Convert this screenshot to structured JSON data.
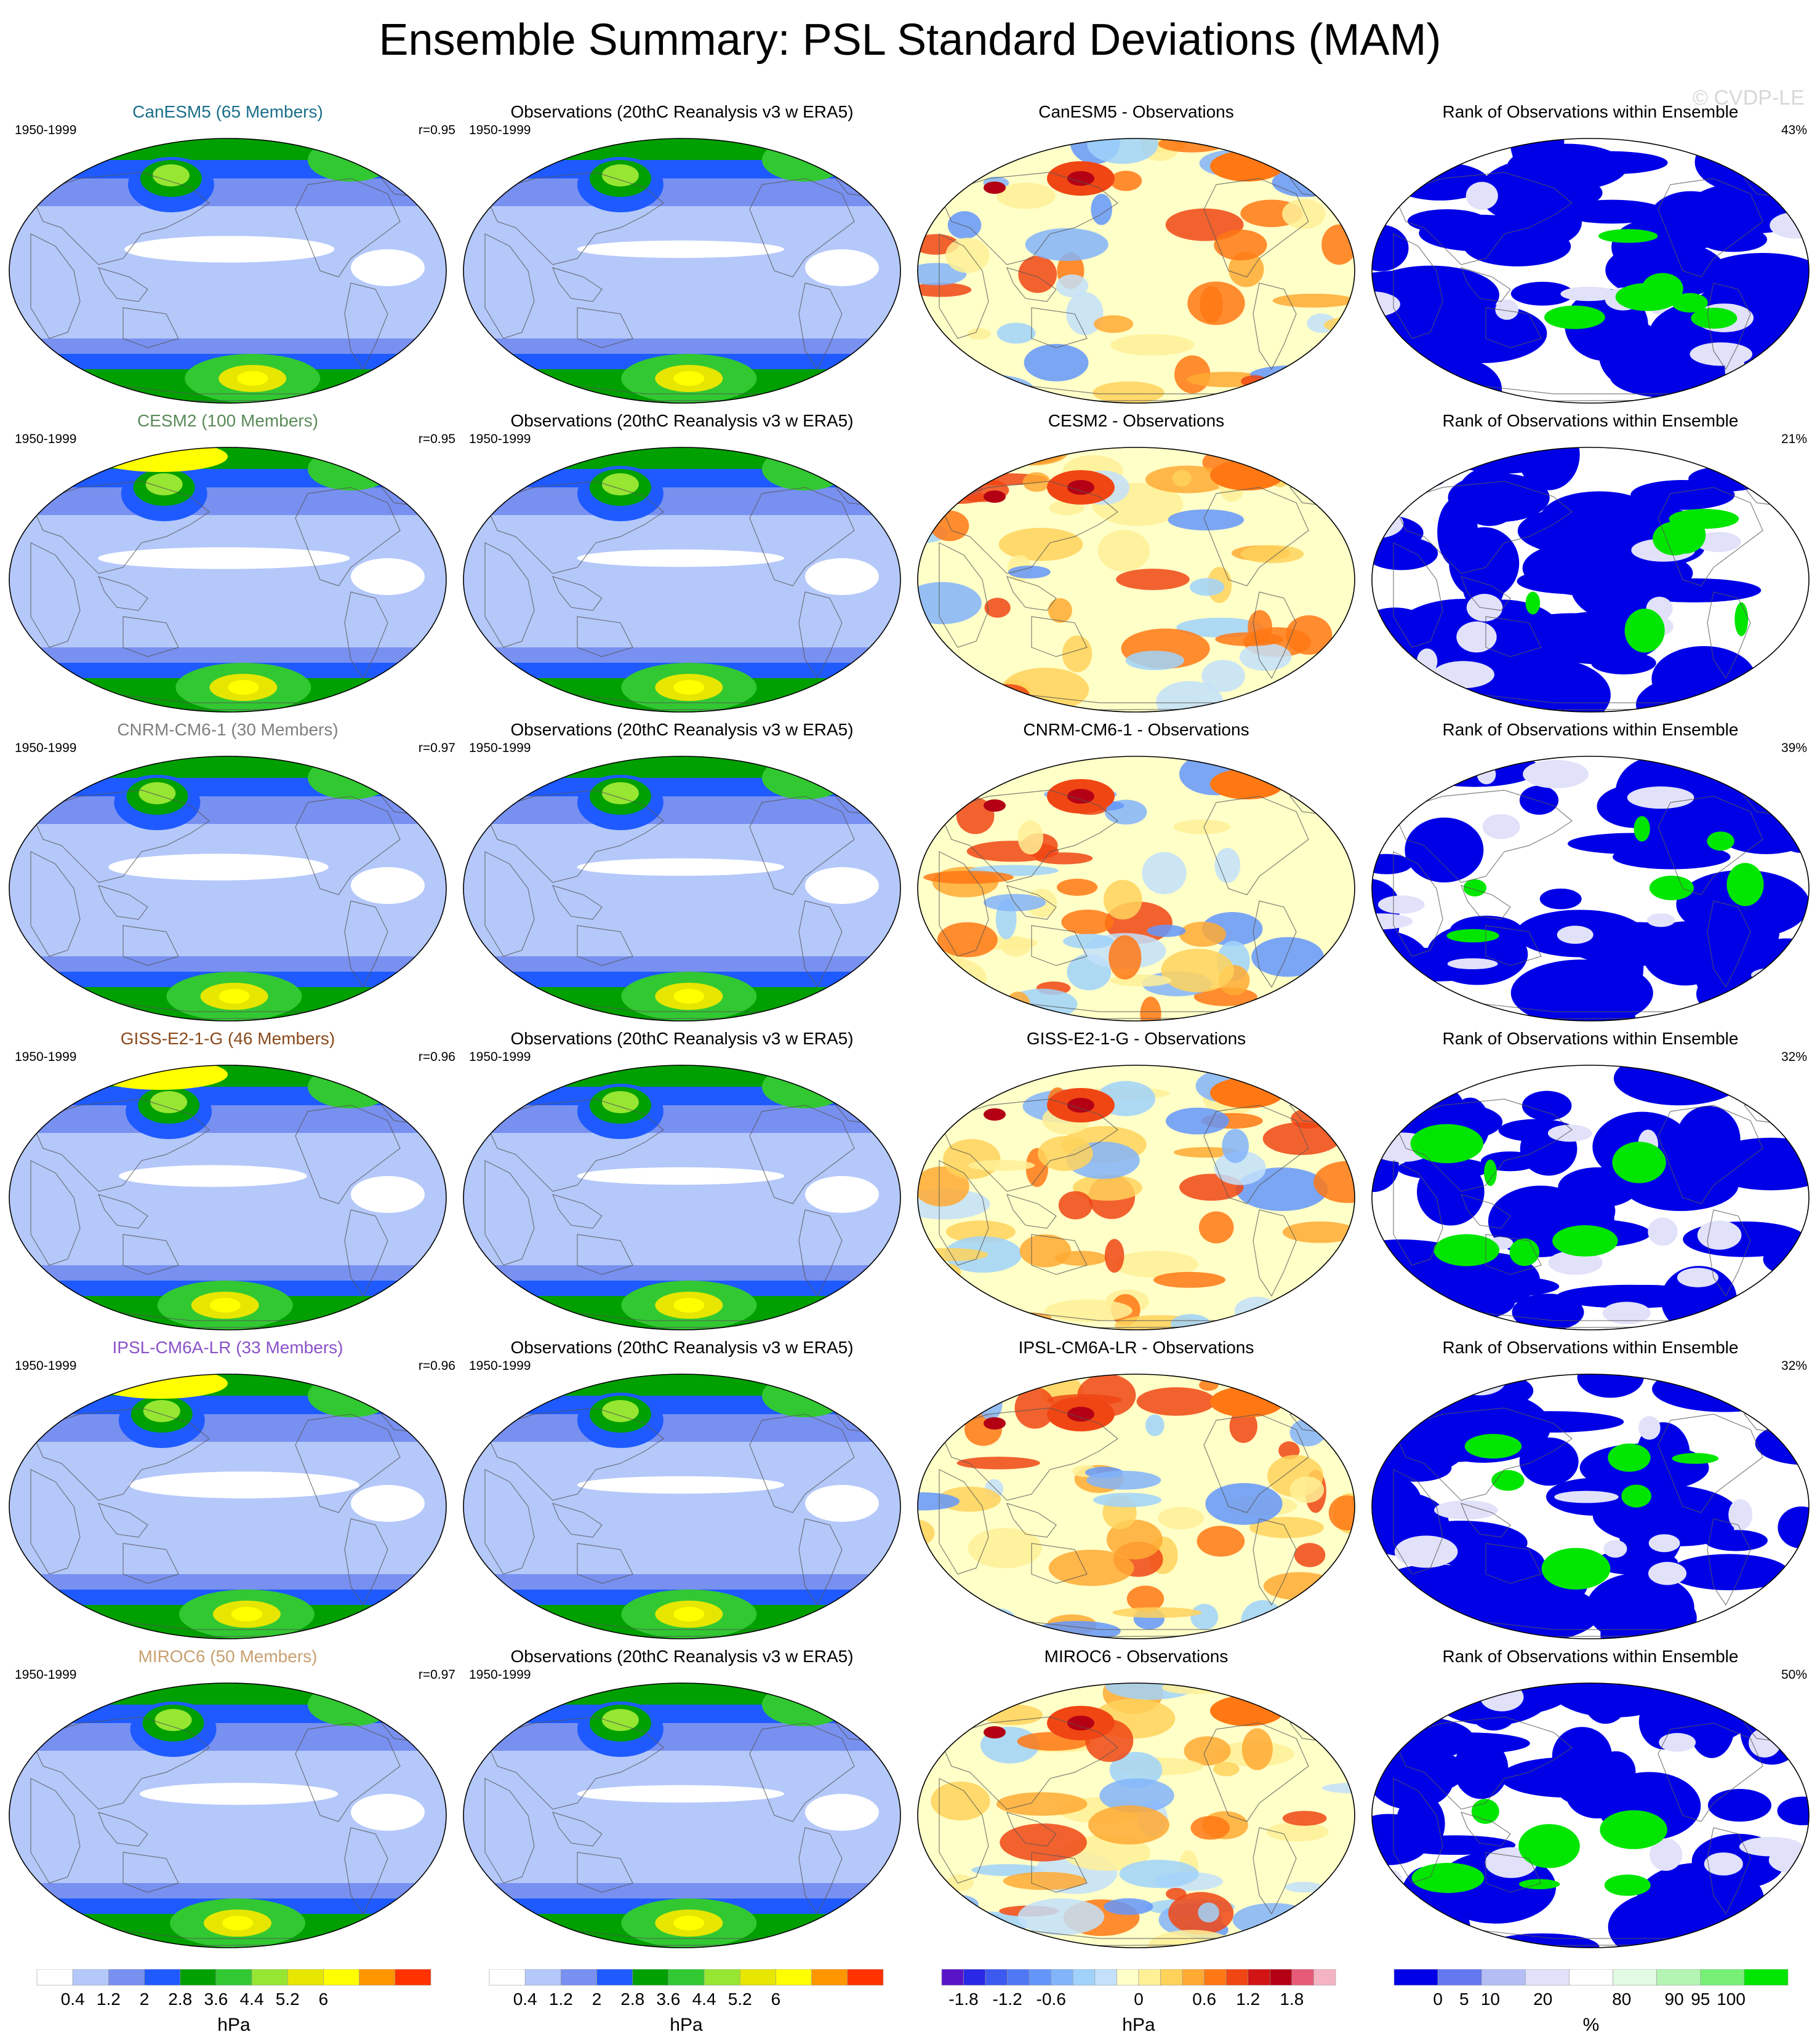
{
  "title": "Ensemble Summary: PSL Standard Deviations (MAM)",
  "watermark": "© CVDP-LE",
  "period": "1950-1999",
  "obs_title": "Observations (20thC Reanalysis v3 w ERA5)",
  "rank_title": "Rank of Observations within Ensemble",
  "rows": [
    {
      "model_title": "CanESM5 (65 Members)",
      "title_color": "#1b6f8a",
      "corr": "r=0.95",
      "diff_title": "CanESM5 - Observations",
      "rank_pct": "43%"
    },
    {
      "model_title": "CESM2 (100 Members)",
      "title_color": "#5a8a5a",
      "corr": "r=0.95",
      "diff_title": "CESM2 - Observations",
      "rank_pct": "21%"
    },
    {
      "model_title": "CNRM-CM6-1 (30 Members)",
      "title_color": "#808080",
      "corr": "r=0.97",
      "diff_title": "CNRM-CM6-1 - Observations",
      "rank_pct": "39%"
    },
    {
      "model_title": "GISS-E2-1-G (46 Members)",
      "title_color": "#8b4a1c",
      "corr": "r=0.96",
      "diff_title": "GISS-E2-1-G - Observations",
      "rank_pct": "32%"
    },
    {
      "model_title": "IPSL-CM6A-LR (33 Members)",
      "title_color": "#8a52c8",
      "corr": "r=0.96",
      "diff_title": "IPSL-CM6A-LR - Observations",
      "rank_pct": "32%"
    },
    {
      "model_title": "MIROC6 (50 Members)",
      "title_color": "#c8a070",
      "corr": "r=0.97",
      "diff_title": "MIROC6 - Observations",
      "rank_pct": "50%"
    }
  ],
  "colorbars": {
    "sd": {
      "labels": [
        "0.4",
        "1.2",
        "2",
        "2.8",
        "3.6",
        "4.4",
        "5.2",
        "6"
      ],
      "unit": "hPa",
      "colors": [
        "#ffffff",
        "#b4c8fa",
        "#7890f0",
        "#1e5aff",
        "#00a000",
        "#32c832",
        "#96e632",
        "#e6e600",
        "#ffff00",
        "#ff9600",
        "#ff3200"
      ]
    },
    "diff": {
      "labels": [
        "-1.8",
        "-1.2",
        "-0.6",
        "0",
        "0.6",
        "1.2",
        "1.8"
      ],
      "unit": "hPa",
      "colors": [
        "#5a14c8",
        "#2828e6",
        "#3c5af0",
        "#5078f5",
        "#6496fa",
        "#82b4fa",
        "#a0d2fa",
        "#c3e1fa",
        "#ffffc8",
        "#fff096",
        "#ffd25a",
        "#ffaa32",
        "#ff7814",
        "#f04614",
        "#d21414",
        "#b40014",
        "#e65a78",
        "#f5b4c3"
      ]
    },
    "rank": {
      "labels": [
        "0",
        "5",
        "10",
        "20",
        "80",
        "90",
        "95",
        "100"
      ],
      "unit": "%",
      "colors": [
        "#0000e6",
        "#6478f0",
        "#b4bef5",
        "#e1e1fa",
        "#ffffff",
        "#e1fae1",
        "#b4f5b4",
        "#78f078",
        "#00e600"
      ]
    }
  }
}
